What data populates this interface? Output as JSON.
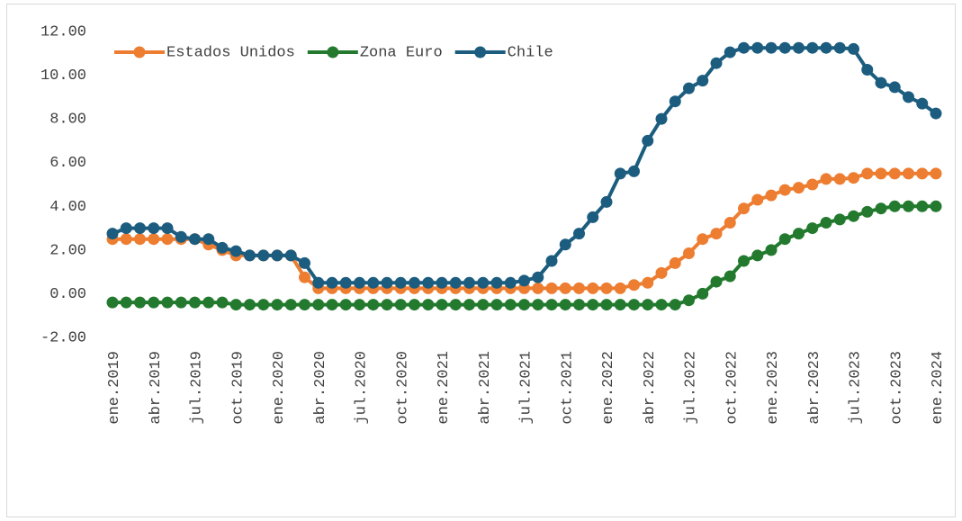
{
  "chart_data": {
    "type": "line",
    "categories": [
      "ene.2019",
      null,
      null,
      "abr.2019",
      null,
      null,
      "jul.2019",
      null,
      null,
      "oct.2019",
      null,
      null,
      "ene.2020",
      null,
      null,
      "abr.2020",
      null,
      null,
      "jul.2020",
      null,
      null,
      "oct.2020",
      null,
      null,
      "ene.2021",
      null,
      null,
      "abr.2021",
      null,
      null,
      "jul.2021",
      null,
      null,
      "oct.2021",
      null,
      null,
      "ene.2022",
      null,
      null,
      "abr.2022",
      null,
      null,
      "jul.2022",
      null,
      null,
      "oct.2022",
      null,
      null,
      "ene.2023",
      null,
      null,
      "abr.2023",
      null,
      null,
      "jul.2023",
      null,
      null,
      "oct.2023",
      null,
      null,
      "ene.2024"
    ],
    "series": [
      {
        "name": "Estados Unidos",
        "color": "#ed7d31",
        "values": [
          2.5,
          2.5,
          2.5,
          2.5,
          2.5,
          2.5,
          2.5,
          2.25,
          2.0,
          1.75,
          1.75,
          1.75,
          1.75,
          1.75,
          0.75,
          0.25,
          0.25,
          0.25,
          0.25,
          0.25,
          0.25,
          0.25,
          0.25,
          0.25,
          0.25,
          0.25,
          0.25,
          0.25,
          0.25,
          0.25,
          0.25,
          0.25,
          0.25,
          0.25,
          0.25,
          0.25,
          0.25,
          0.25,
          0.4,
          0.5,
          0.95,
          1.4,
          1.85,
          2.5,
          2.75,
          3.25,
          3.9,
          4.3,
          4.5,
          4.75,
          4.85,
          5.0,
          5.25,
          5.25,
          5.3,
          5.5,
          5.5,
          5.5,
          5.5,
          5.5,
          5.5
        ]
      },
      {
        "name": "Zona Euro",
        "color": "#237a2e",
        "values": [
          -0.4,
          -0.4,
          -0.4,
          -0.4,
          -0.4,
          -0.4,
          -0.4,
          -0.4,
          -0.4,
          -0.5,
          -0.5,
          -0.5,
          -0.5,
          -0.5,
          -0.5,
          -0.5,
          -0.5,
          -0.5,
          -0.5,
          -0.5,
          -0.5,
          -0.5,
          -0.5,
          -0.5,
          -0.5,
          -0.5,
          -0.5,
          -0.5,
          -0.5,
          -0.5,
          -0.5,
          -0.5,
          -0.5,
          -0.5,
          -0.5,
          -0.5,
          -0.5,
          -0.5,
          -0.5,
          -0.5,
          -0.5,
          -0.5,
          -0.3,
          0,
          0.55,
          0.8,
          1.5,
          1.75,
          2.0,
          2.5,
          2.75,
          3.0,
          3.25,
          3.4,
          3.55,
          3.75,
          3.9,
          4.0,
          4.0,
          4.0,
          4.0
        ]
      },
      {
        "name": "Chile",
        "color": "#1c5d7f",
        "values": [
          2.75,
          3.0,
          3.0,
          3.0,
          3.0,
          2.6,
          2.5,
          2.5,
          2.1,
          1.95,
          1.75,
          1.75,
          1.75,
          1.75,
          1.4,
          0.5,
          0.5,
          0.5,
          0.5,
          0.5,
          0.5,
          0.5,
          0.5,
          0.5,
          0.5,
          0.5,
          0.5,
          0.5,
          0.5,
          0.5,
          0.6,
          0.75,
          1.5,
          2.25,
          2.75,
          3.5,
          4.2,
          5.5,
          5.6,
          7.0,
          8.0,
          8.8,
          9.4,
          9.75,
          10.55,
          11.05,
          11.25,
          11.25,
          11.25,
          11.25,
          11.25,
          11.25,
          11.25,
          11.25,
          11.2,
          10.25,
          9.65,
          9.45,
          9.0,
          8.7,
          8.25
        ]
      }
    ],
    "ylim": [
      -2,
      12
    ],
    "yticks": [
      {
        "value": -2,
        "label": "-2.00"
      },
      {
        "value": 0,
        "label": "0.00"
      },
      {
        "value": 2,
        "label": "2.00"
      },
      {
        "value": 4,
        "label": "4.00"
      },
      {
        "value": 6,
        "label": "6.00"
      },
      {
        "value": 8,
        "label": "8.00"
      },
      {
        "value": 10,
        "label": "10.00"
      },
      {
        "value": 12,
        "label": "12.00"
      }
    ],
    "grid": false,
    "legend": "top-left"
  }
}
